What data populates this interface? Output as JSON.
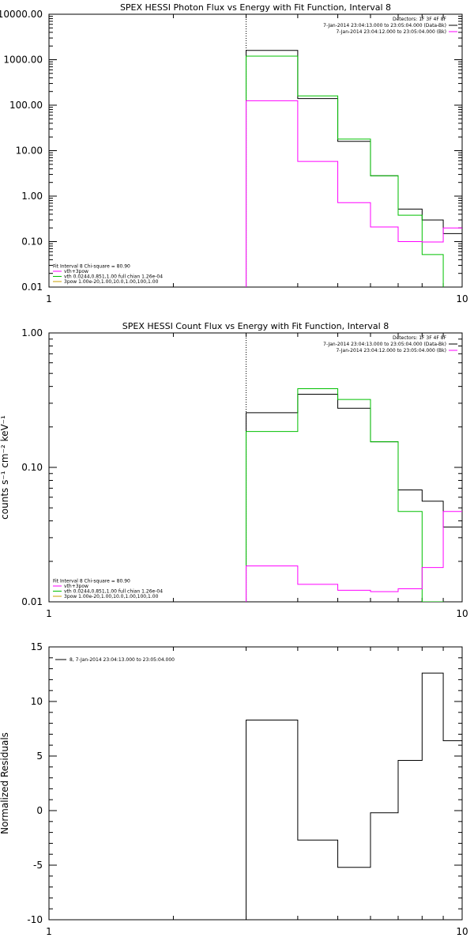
{
  "chart_data": [
    {
      "type": "line",
      "step": true,
      "title": "SPEX HESSI Photon Flux vs Energy with Fit Function, Interval 8",
      "ylabel": "",
      "xlabel": "",
      "xscale": "log",
      "yscale": "log",
      "xlim": [
        1,
        10
      ],
      "ylim": [
        0.01,
        10000
      ],
      "x_tick_labels": [
        {
          "v": 1,
          "t": "1"
        },
        {
          "v": 10,
          "t": "10"
        }
      ],
      "y_tick_labels": [
        {
          "v": 0.01,
          "t": "0.01"
        },
        {
          "v": 0.1,
          "t": "0.10"
        },
        {
          "v": 1,
          "t": "1.00"
        },
        {
          "v": 10,
          "t": "10.00"
        },
        {
          "v": 100,
          "t": "100.00"
        },
        {
          "v": 1000,
          "t": "1000.00"
        },
        {
          "v": 10000,
          "t": "10000.00"
        }
      ],
      "vline_x": 3,
      "header_text": [
        "Detectors: 1F 3F 4F 8F",
        "7-Jan-2014 23:04:13.000 to 23:05:04.000 (Data-Bk)",
        "7-Jan-2014 23:04:12.000 to 23:05:04.000 (Bk)"
      ],
      "header_colors": [
        "#000000",
        "#000000",
        "#ff00ff"
      ],
      "fit_text": [
        "Fit Interval 8   Chi-square = 80.90",
        "vth+3pow",
        "vth 0.0244,0.851,1.00  full chian 1.26e-04",
        "3pow 1.00e-20,1.00,10.0,1.00,100,1.00"
      ],
      "fit_colors": [
        "#000000",
        "#ff00ff",
        "#00c000",
        "#c8a000"
      ],
      "bin_edges": [
        3,
        4,
        5,
        6,
        7,
        8,
        9,
        10
      ],
      "series": [
        {
          "name": "Data-Bk",
          "color": "#000000",
          "values": [
            1600,
            140,
            16,
            2.8,
            0.52,
            0.3,
            0.15
          ]
        },
        {
          "name": "vth+3pow",
          "color": "#00c000",
          "values": [
            1200,
            160,
            18,
            2.8,
            0.38,
            0.052,
            0.0001
          ]
        },
        {
          "name": "Bk",
          "color": "#ff00ff",
          "values": [
            125,
            5.8,
            0.72,
            0.21,
            0.1,
            0.098,
            0.2
          ]
        }
      ]
    },
    {
      "type": "line",
      "step": true,
      "title": "SPEX HESSI Count Flux vs Energy with Fit Function, Interval 8",
      "ylabel": "counts s⁻¹ cm⁻² keV⁻¹",
      "xlabel": "",
      "xscale": "log",
      "yscale": "log",
      "xlim": [
        1,
        10
      ],
      "ylim": [
        0.01,
        1
      ],
      "x_tick_labels": [
        {
          "v": 1,
          "t": "1"
        },
        {
          "v": 10,
          "t": "10"
        }
      ],
      "y_tick_labels": [
        {
          "v": 0.01,
          "t": "0.01"
        },
        {
          "v": 0.1,
          "t": "0.10"
        },
        {
          "v": 1,
          "t": "1.00"
        }
      ],
      "vline_x": 3,
      "header_text": [
        "Detectors: 1F 3F 4F 8F",
        "7-Jan-2014 23:04:13.000 to 23:05:04.000 (Data-Bk)",
        "7-Jan-2014 23:04:12.000 to 23:05:04.000 (Bk)"
      ],
      "header_colors": [
        "#000000",
        "#000000",
        "#ff00ff"
      ],
      "fit_text": [
        "Fit Interval 8   Chi-square = 80.90",
        "vth+3pow",
        "vth 0.0244,0.851,1.00  full chian 1.26e-04",
        "3pow 1.00e-20,1.00,10.0,1.00,100,1.00"
      ],
      "fit_colors": [
        "#000000",
        "#ff00ff",
        "#00c000",
        "#c8a000"
      ],
      "bin_edges": [
        3,
        4,
        5,
        6,
        7,
        8,
        9,
        10
      ],
      "series": [
        {
          "name": "Data-Bk",
          "color": "#000000",
          "values": [
            0.255,
            0.35,
            0.275,
            0.155,
            0.068,
            0.056,
            0.036
          ]
        },
        {
          "name": "vth+3pow",
          "color": "#00c000",
          "values": [
            0.185,
            0.385,
            0.32,
            0.155,
            0.047,
            0.01,
            0.0001
          ]
        },
        {
          "name": "Bk",
          "color": "#ff00ff",
          "values": [
            0.0185,
            0.0135,
            0.0122,
            0.0119,
            0.0125,
            0.018,
            0.047
          ]
        }
      ]
    },
    {
      "type": "line",
      "step": true,
      "title": "",
      "ylabel": "Normalized Residuals",
      "xlabel": "",
      "xscale": "log",
      "yscale": "linear",
      "xlim": [
        1,
        10
      ],
      "ylim": [
        -10,
        15
      ],
      "x_tick_labels": [
        {
          "v": 1,
          "t": "1"
        },
        {
          "v": 10,
          "t": "10"
        }
      ],
      "y_tick_labels": [
        {
          "v": -10,
          "t": "-10"
        },
        {
          "v": -5,
          "t": "-5"
        },
        {
          "v": 0,
          "t": "0"
        },
        {
          "v": 5,
          "t": "5"
        },
        {
          "v": 10,
          "t": "10"
        },
        {
          "v": 15,
          "t": "15"
        }
      ],
      "legend_text": "8,  7-Jan-2014 23:04:13.000 to 23:05:04.000",
      "bin_edges": [
        3,
        4,
        5,
        6,
        7,
        8,
        9,
        10
      ],
      "series": [
        {
          "name": "8",
          "color": "#000000",
          "values": [
            8.3,
            -2.7,
            -5.2,
            -0.2,
            4.6,
            12.6,
            6.4
          ]
        }
      ]
    }
  ]
}
